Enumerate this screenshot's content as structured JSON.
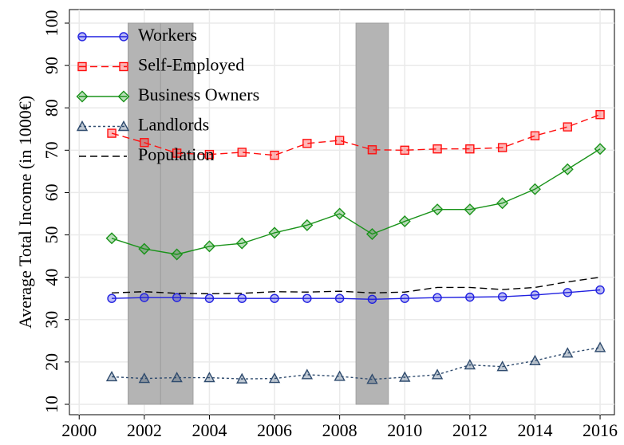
{
  "chart_data": {
    "type": "line",
    "y_label": "Average Total Income (in 1000€)",
    "x": [
      2001,
      2002,
      2003,
      2004,
      2005,
      2006,
      2007,
      2008,
      2009,
      2010,
      2011,
      2012,
      2013,
      2014,
      2015,
      2016
    ],
    "series": [
      {
        "name": "Workers",
        "color": "#2020e0",
        "marker": "circle",
        "dash": "solid",
        "values": [
          35,
          35.2,
          35.2,
          35,
          35,
          35,
          35,
          35,
          34.8,
          35,
          35.2,
          35.3,
          35.4,
          35.8,
          36.4,
          37
        ]
      },
      {
        "name": "Self-Employed",
        "color": "#ff1010",
        "marker": "square",
        "dash": "dashed",
        "values": [
          74,
          71.8,
          69.3,
          69,
          69.5,
          68.8,
          71.6,
          72.3,
          70.1,
          70,
          70.3,
          70.3,
          70.6,
          73.4,
          75.5,
          78.4
        ]
      },
      {
        "name": "Business Owners",
        "color": "#1a931a",
        "marker": "diamond",
        "dash": "solid",
        "values": [
          49.2,
          46.7,
          45.4,
          47.3,
          48,
          50.5,
          52.3,
          55,
          50.2,
          53.2,
          56,
          56,
          57.5,
          60.8,
          65.5,
          70.3
        ]
      },
      {
        "name": "Landlords",
        "color": "#2f4b6e",
        "marker": "triangle",
        "dash": "dotted",
        "values": [
          16.5,
          16.1,
          16.3,
          16.3,
          16,
          16.1,
          17,
          16.6,
          15.9,
          16.4,
          17,
          19.3,
          18.9,
          20.3,
          22.1,
          23.4
        ]
      },
      {
        "name": "Population",
        "color": "#000000",
        "marker": "none",
        "dash": "dashed",
        "values": [
          36.3,
          36.6,
          36.2,
          36.1,
          36.2,
          36.6,
          36.5,
          36.7,
          36.3,
          36.5,
          37.6,
          37.6,
          37.1,
          37.6,
          38.9,
          40
        ]
      }
    ],
    "shaded_periods": [
      [
        2001.5,
        2002.5
      ],
      [
        2002.5,
        2003.5
      ],
      [
        2008.5,
        2009.5
      ]
    ],
    "shade_color": "#b4b4b4",
    "xlim": [
      1999.7,
      2016.44
    ],
    "xticks": [
      2000,
      2002,
      2004,
      2006,
      2008,
      2010,
      2012,
      2014,
      2016
    ],
    "ylim": [
      7.55,
      103.2
    ],
    "yticks": [
      10,
      20,
      30,
      40,
      50,
      60,
      70,
      80,
      90,
      100
    ],
    "grid": true,
    "legend": "top-left"
  }
}
